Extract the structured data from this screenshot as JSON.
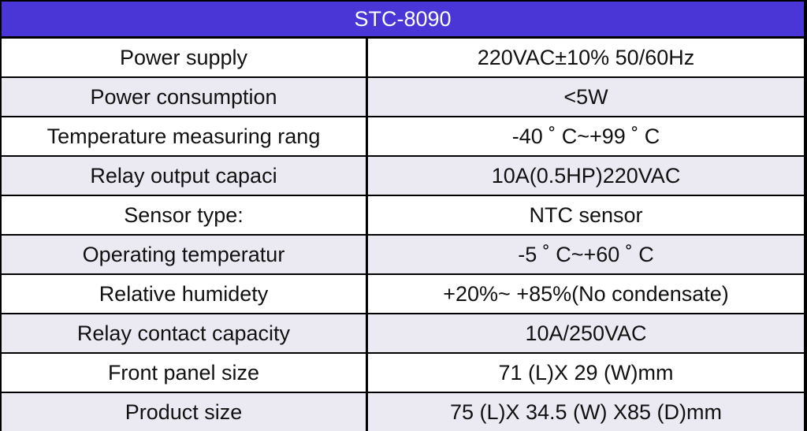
{
  "table": {
    "title": "STC-8090",
    "colors": {
      "header_bg": "#4a36d6",
      "header_text": "#ffffff",
      "row_light": "#ffffff",
      "row_alt": "#ebeaf2",
      "grid": "#000000"
    },
    "rows": [
      {
        "label": "Power supply",
        "value": "220VAC±10% 50/60Hz"
      },
      {
        "label": "Power consumption",
        "value": "<5W"
      },
      {
        "label": "Temperature measuring rang",
        "value": "-40 ˚ C~+99 ˚ C"
      },
      {
        "label": "Relay output capaci",
        "value": "10A(0.5HP)220VAC"
      },
      {
        "label": "Sensor type:",
        "value": "NTC sensor"
      },
      {
        "label": "Operating temperatur",
        "value": "-5 ˚ C~+60 ˚ C"
      },
      {
        "label": "Relative humidety",
        "value": "+20%~ +85%(No condensate)"
      },
      {
        "label": "Relay contact capacity",
        "value": "10A/250VAC"
      },
      {
        "label": "Front panel size",
        "value": "71 (L)X 29 (W)mm"
      },
      {
        "label": "Product size",
        "value": "75 (L)X 34.5 (W) X85 (D)mm"
      }
    ]
  }
}
